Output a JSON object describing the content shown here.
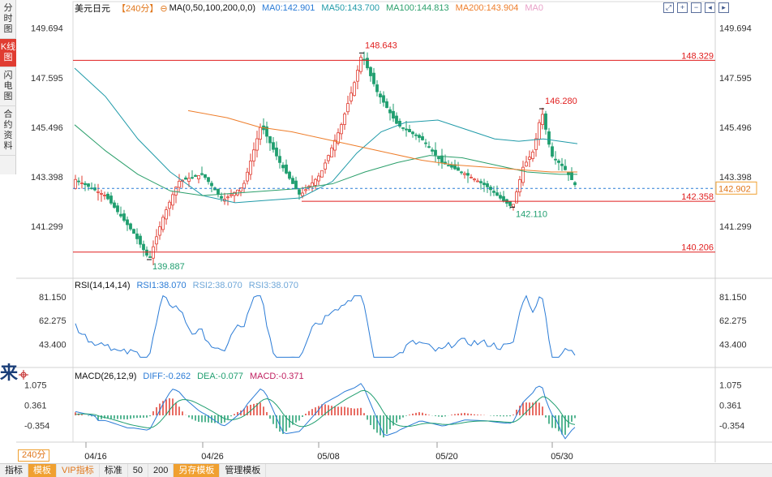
{
  "side_tabs": [
    {
      "label": "分时图",
      "active": false
    },
    {
      "label": "K线图",
      "active": true
    },
    {
      "label": "闪电图",
      "active": false
    },
    {
      "label": "合约资料",
      "active": false
    }
  ],
  "side_glyph": "来",
  "header": {
    "symbol": "美元日元",
    "period": "【240分】",
    "ma_label": "MA(0,50,100,200,0,0)",
    "ma0": "MA0:142.901",
    "ma50": "MA50:143.700",
    "ma100": "MA100:144.813",
    "ma200": "MA200:143.904",
    "ma0b": "MA0"
  },
  "price_axis": [
    "149.694",
    "147.595",
    "145.496",
    "143.398",
    "141.299"
  ],
  "hlines": [
    {
      "label": "148.329",
      "value": 148.329
    },
    {
      "label": "142.358",
      "value": 142.358
    },
    {
      "label": "140.206",
      "value": 140.206
    }
  ],
  "current_price": "142.902",
  "annotations": {
    "high1": "148.643",
    "high2": "146.280",
    "low1": "139.887",
    "low2": "142.110"
  },
  "rsi": {
    "label": "RSI(14,14,14)",
    "rsi1": "RSI1:38.070",
    "rsi2": "RSI2:38.070",
    "rsi3": "RSI3:38.070",
    "axis": [
      "81.150",
      "62.275",
      "43.400"
    ]
  },
  "macd": {
    "label": "MACD(26,12,9)",
    "diff": "DIFF:-0.262",
    "dea": "DEA:-0.077",
    "macd": "MACD:-0.371",
    "axis": [
      "1.075",
      "0.361",
      "-0.354"
    ]
  },
  "dates": [
    "04/16",
    "04/26",
    "05/08",
    "05/20",
    "05/30"
  ],
  "period_tag": "240分",
  "bottom_bar": [
    "指标",
    "模板",
    "VIP指标",
    "标准",
    "50",
    "200",
    "另存模板",
    "管理模板"
  ],
  "colors": {
    "up": "#e03c31",
    "down": "#1f9e6f",
    "ma50": "#1f9aa8",
    "ma100": "#2b9f6b",
    "ma200": "#ee7d2a",
    "hline": "#e01e1e",
    "dashed": "#2a7bd6",
    "accent": "#f0a030"
  }
}
